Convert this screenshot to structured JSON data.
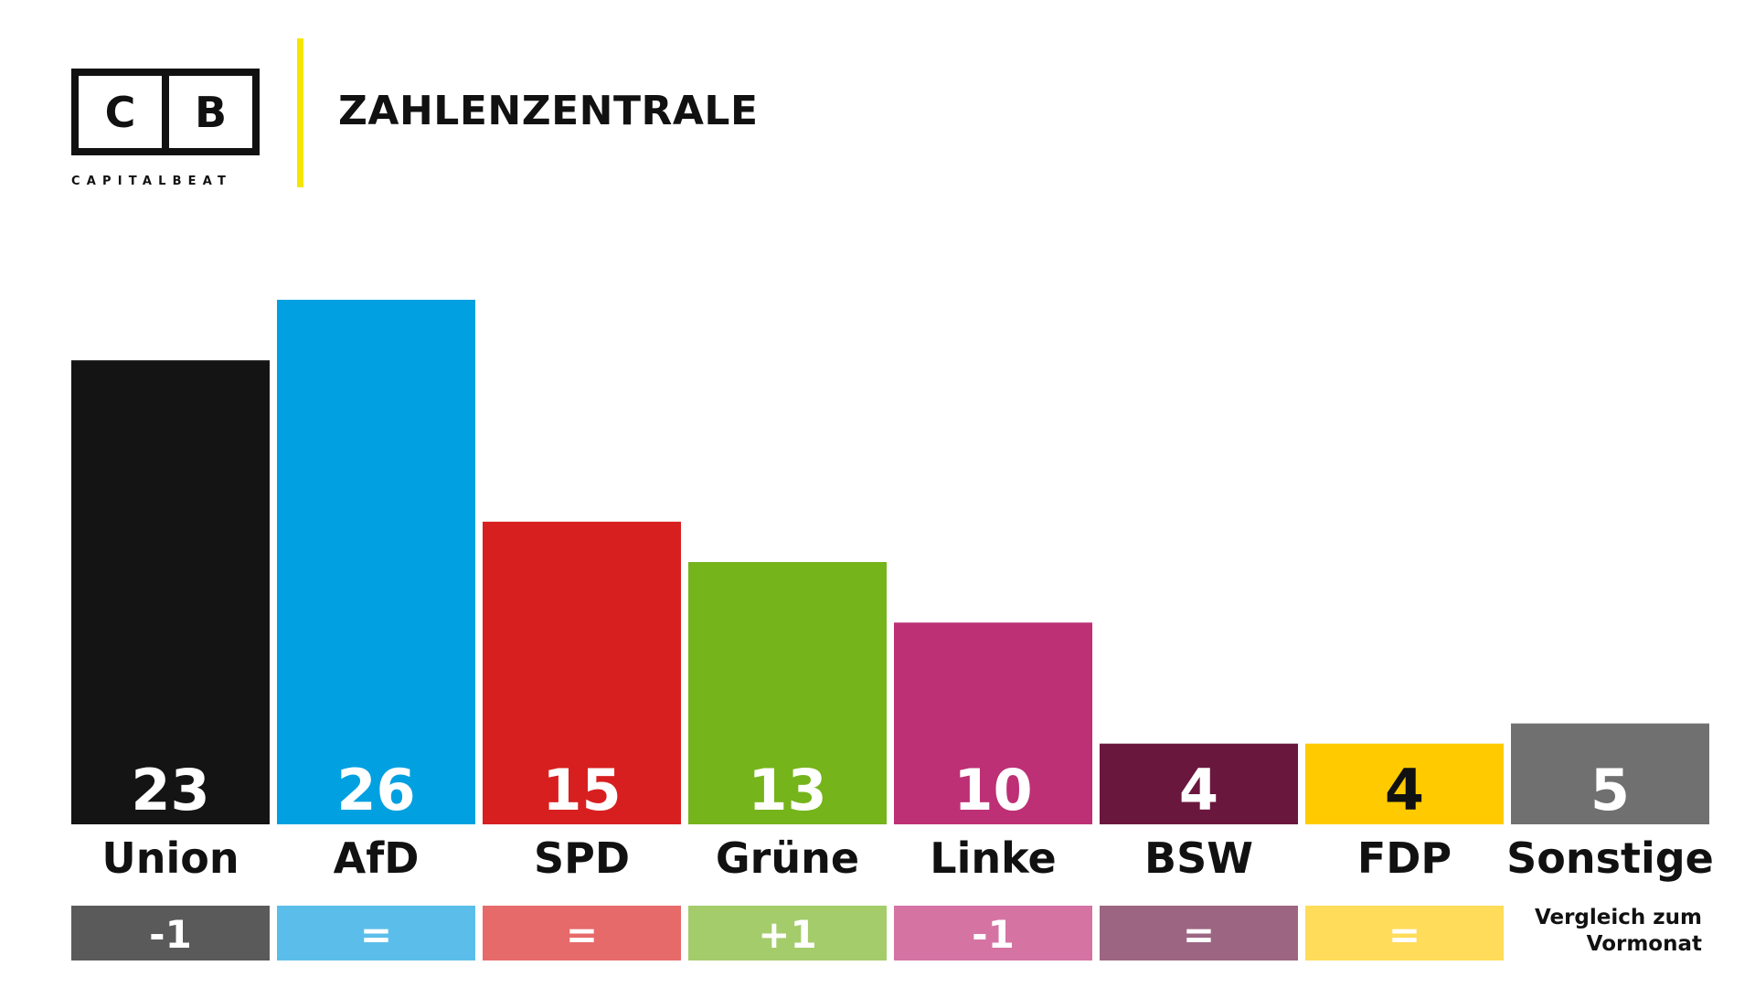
{
  "header": {
    "logo_letters": [
      "C",
      "B"
    ],
    "logo_wordmark": "CAPITALBEAT",
    "title": "ZAHLENZENTRALE",
    "accent_color": "#F5E600"
  },
  "chart_data": {
    "type": "bar",
    "title": "",
    "xlabel": "",
    "ylabel": "",
    "ylim": [
      0,
      26
    ],
    "grid": false,
    "legend": "none",
    "categories": [
      "Union",
      "AfD",
      "SPD",
      "Grüne",
      "Linke",
      "BSW",
      "FDP",
      "Sonstige"
    ],
    "values": [
      23,
      26,
      15,
      13,
      10,
      4,
      4,
      5
    ],
    "value_labels": [
      "23",
      "26",
      "15",
      "13",
      "10",
      "4",
      "4",
      "5"
    ],
    "colors": [
      "#141414",
      "#00A0E1",
      "#D81F1F",
      "#75B41B",
      "#BD3075",
      "#6A173E",
      "#FFCB00",
      "#707070"
    ],
    "value_text_colors": [
      "#ffffff",
      "#ffffff",
      "#ffffff",
      "#ffffff",
      "#ffffff",
      "#ffffff",
      "#111111",
      "#ffffff"
    ],
    "changes": [
      "-1",
      "=",
      "=",
      "+1",
      "-1",
      "=",
      "="
    ],
    "change_colors": [
      "#5A5A5A",
      "#5BBEEA",
      "#E76A6A",
      "#A4CC6B",
      "#D574A3",
      "#9C6682",
      "#FFDC5A"
    ],
    "change_note": [
      "Vergleich zum",
      "Vormonat"
    ]
  }
}
